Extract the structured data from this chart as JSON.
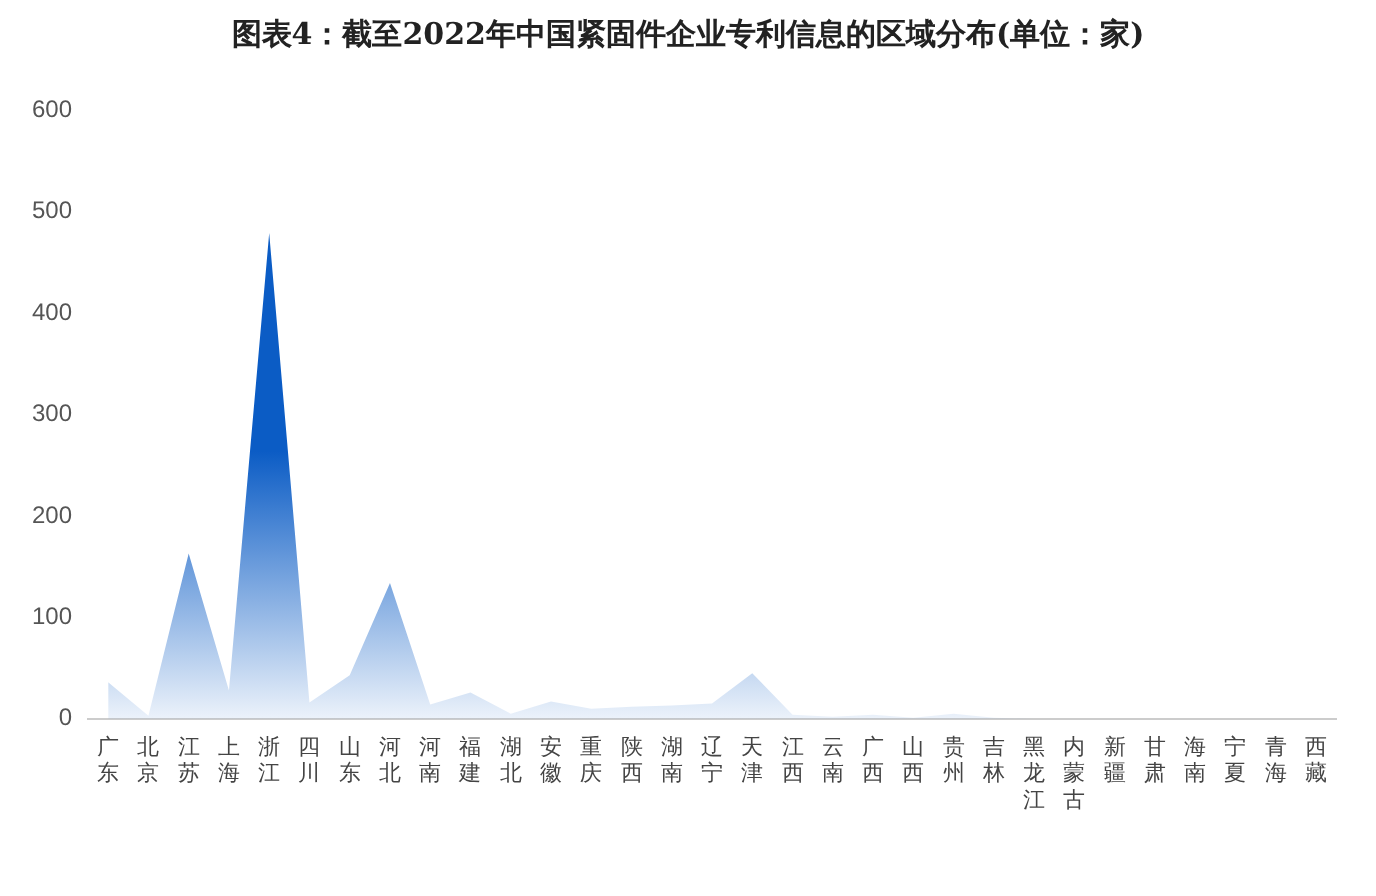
{
  "chart_data": {
    "type": "area",
    "title": "图表4：截至2022年中国紧固件企业专利信息的区域分布(单位：家)",
    "categories": [
      "广东",
      "北京",
      "江苏",
      "上海",
      "浙江",
      "四川",
      "山东",
      "河北",
      "河南",
      "福建",
      "湖北",
      "安徽",
      "重庆",
      "陕西",
      "湖南",
      "辽宁",
      "天津",
      "江西",
      "云南",
      "广西",
      "山西",
      "贵州",
      "吉林",
      "黑龙江",
      "内蒙古",
      "新疆",
      "甘肃",
      "海南",
      "宁夏",
      "青海",
      "西藏"
    ],
    "series": [
      {
        "color": "#0b5cc5",
        "values": [
          36,
          3,
          163,
          28,
          479,
          16,
          43,
          134,
          14,
          26,
          5,
          17,
          10,
          12,
          13,
          15,
          45,
          4,
          2,
          4,
          1,
          5,
          1,
          0,
          0,
          0,
          0,
          0,
          0,
          0,
          0
        ]
      }
    ],
    "ylim": [
      0,
      600
    ],
    "yticks": [
      0,
      100,
      200,
      300,
      400,
      500,
      600
    ],
    "grid": false,
    "legend": false
  }
}
